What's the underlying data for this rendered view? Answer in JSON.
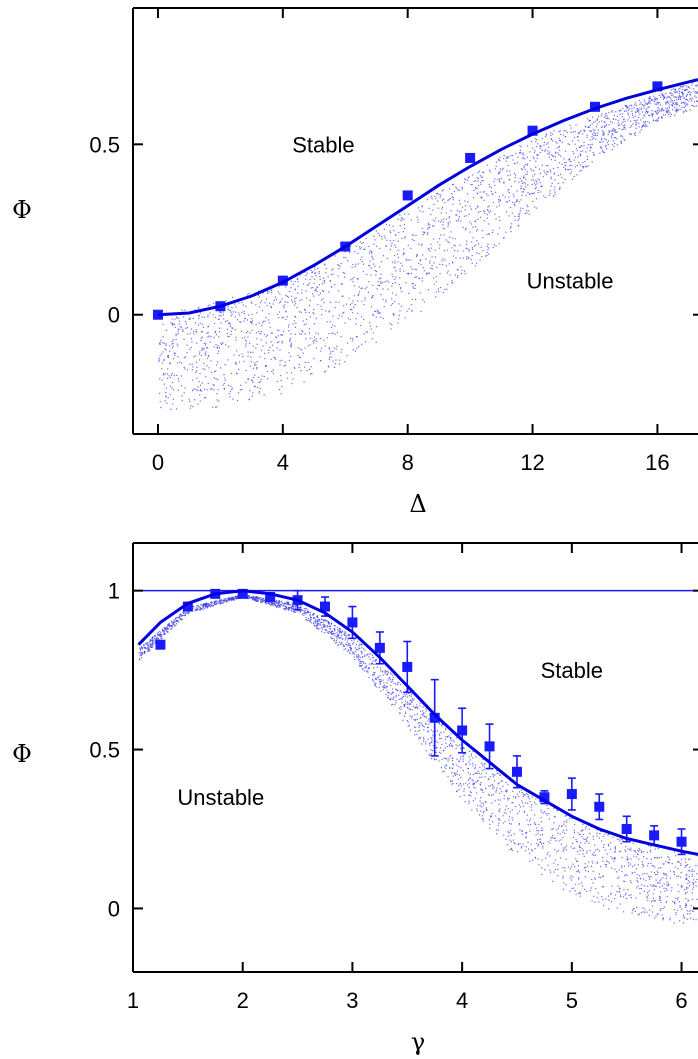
{
  "chart_data": [
    {
      "type": "scatter",
      "panel": "top",
      "xlabel": "Δ",
      "ylabel": "Φ",
      "xlim": [
        -0.8,
        17.3
      ],
      "ylim": [
        -0.35,
        0.9
      ],
      "x_ticks": [
        0,
        4,
        8,
        12,
        16
      ],
      "x_tick_labels": [
        "0",
        "4",
        "8",
        "12",
        "16"
      ],
      "y_ticks": [
        0,
        0.5
      ],
      "y_tick_labels": [
        "0",
        "0.5"
      ],
      "region_labels": [
        {
          "text": "Stable",
          "x": 5.3,
          "y": 0.5
        },
        {
          "text": "Unstable",
          "x": 13.2,
          "y": 0.1
        }
      ],
      "series": [
        {
          "kind": "markers",
          "color": "#1a1aff",
          "x": [
            0,
            2,
            4,
            6,
            8,
            10,
            12,
            14,
            16
          ],
          "y": [
            0.0,
            0.025,
            0.1,
            0.2,
            0.35,
            0.46,
            0.54,
            0.61,
            0.67
          ]
        },
        {
          "kind": "line",
          "color": "#0000dd",
          "x": [
            0,
            1,
            2,
            3,
            4,
            5,
            6,
            7,
            8,
            9,
            10,
            11,
            12,
            13,
            14,
            15,
            16,
            17.3
          ],
          "y": [
            0.0,
            0.005,
            0.025,
            0.055,
            0.095,
            0.145,
            0.2,
            0.26,
            0.32,
            0.38,
            0.435,
            0.485,
            0.53,
            0.57,
            0.605,
            0.635,
            0.66,
            0.69
          ]
        }
      ],
      "scatter_band": {
        "color": "#3a3ae6",
        "upper": {
          "x": [
            0,
            4,
            8,
            12,
            16,
            17.3
          ],
          "y": [
            0.0,
            0.09,
            0.31,
            0.52,
            0.65,
            0.69
          ]
        },
        "lower": {
          "x": [
            0,
            2,
            4,
            6,
            8,
            10,
            12,
            14,
            16,
            17.3
          ],
          "y": [
            -0.28,
            -0.27,
            -0.23,
            -0.14,
            -0.02,
            0.13,
            0.3,
            0.45,
            0.57,
            0.61
          ]
        }
      }
    },
    {
      "type": "scatter",
      "panel": "bottom",
      "xlabel": "γ",
      "ylabel": "Φ",
      "xlim": [
        1,
        6.15
      ],
      "ylim": [
        -0.2,
        1.15
      ],
      "x_ticks": [
        1,
        2,
        3,
        4,
        5,
        6
      ],
      "x_tick_labels": [
        "1",
        "2",
        "3",
        "4",
        "5",
        "6"
      ],
      "y_ticks": [
        0,
        0.5,
        1
      ],
      "y_tick_labels": [
        "0",
        "0.5",
        "1"
      ],
      "reference_line_y": 1,
      "region_labels": [
        {
          "text": "Stable",
          "x": 5.0,
          "y": 0.75
        },
        {
          "text": "Unstable",
          "x": 1.8,
          "y": 0.35
        }
      ],
      "series": [
        {
          "kind": "markers-errorbars",
          "color": "#1a1aff",
          "x": [
            1.25,
            1.5,
            1.75,
            2.0,
            2.25,
            2.5,
            2.75,
            3.0,
            3.25,
            3.5,
            3.75,
            4.0,
            4.25,
            4.5,
            4.75,
            5.0,
            5.25,
            5.5,
            5.75,
            6.0
          ],
          "y": [
            0.83,
            0.95,
            0.99,
            0.99,
            0.98,
            0.97,
            0.95,
            0.9,
            0.82,
            0.76,
            0.6,
            0.56,
            0.51,
            0.43,
            0.35,
            0.36,
            0.32,
            0.25,
            0.23,
            0.21
          ],
          "err": [
            0,
            0,
            0,
            0,
            0,
            0.03,
            0.03,
            0.05,
            0.05,
            0.08,
            0.12,
            0.07,
            0.07,
            0.05,
            0.02,
            0.05,
            0.04,
            0.04,
            0.03,
            0.04
          ]
        },
        {
          "kind": "line",
          "color": "#0000dd",
          "x": [
            1.05,
            1.25,
            1.5,
            1.75,
            2.0,
            2.25,
            2.5,
            2.75,
            3.0,
            3.25,
            3.5,
            3.75,
            4.0,
            4.25,
            4.5,
            4.75,
            5.0,
            5.25,
            5.5,
            5.75,
            6.0,
            6.15
          ],
          "y": [
            0.83,
            0.9,
            0.96,
            0.99,
            1.0,
            0.99,
            0.97,
            0.93,
            0.87,
            0.79,
            0.7,
            0.61,
            0.53,
            0.46,
            0.39,
            0.34,
            0.29,
            0.25,
            0.22,
            0.2,
            0.18,
            0.17
          ]
        }
      ],
      "scatter_band": {
        "color": "#3a3ae6",
        "upper": {
          "x": [
            1.05,
            1.5,
            2.0,
            2.5,
            3.0,
            3.5,
            4.0,
            4.5,
            5.0,
            5.5,
            6.0,
            6.15
          ],
          "y": [
            0.82,
            0.95,
            0.99,
            0.96,
            0.86,
            0.69,
            0.52,
            0.39,
            0.29,
            0.22,
            0.18,
            0.17
          ]
        },
        "lower": {
          "x": [
            1.05,
            1.5,
            2.0,
            2.5,
            3.0,
            3.5,
            4.0,
            4.5,
            5.0,
            5.5,
            6.0,
            6.15
          ],
          "y": [
            0.78,
            0.93,
            0.98,
            0.93,
            0.79,
            0.57,
            0.34,
            0.16,
            0.04,
            -0.02,
            -0.05,
            -0.05
          ]
        }
      }
    }
  ]
}
